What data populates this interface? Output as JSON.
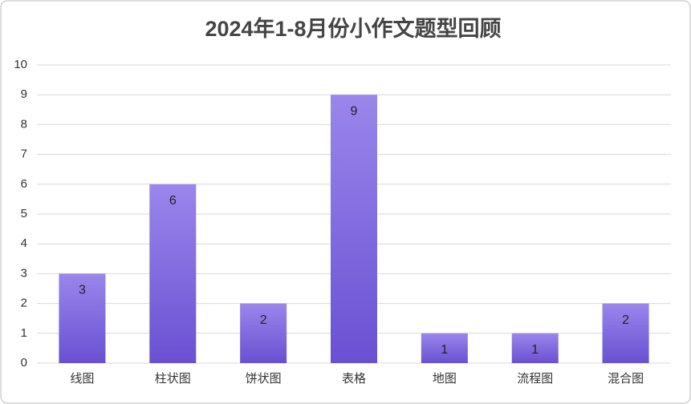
{
  "chart_data": {
    "type": "bar",
    "title": "2024年1-8月份小作文题型回顾",
    "categories": [
      "线图",
      "柱状图",
      "饼状图",
      "表格",
      "地图",
      "流程图",
      "混合图"
    ],
    "values": [
      3,
      6,
      2,
      9,
      1,
      1,
      2
    ],
    "color": "#7d62dc",
    "ylim": [
      0,
      10
    ],
    "yticks": [
      0,
      1,
      2,
      3,
      4,
      5,
      6,
      7,
      8,
      9,
      10
    ],
    "grid": true
  }
}
